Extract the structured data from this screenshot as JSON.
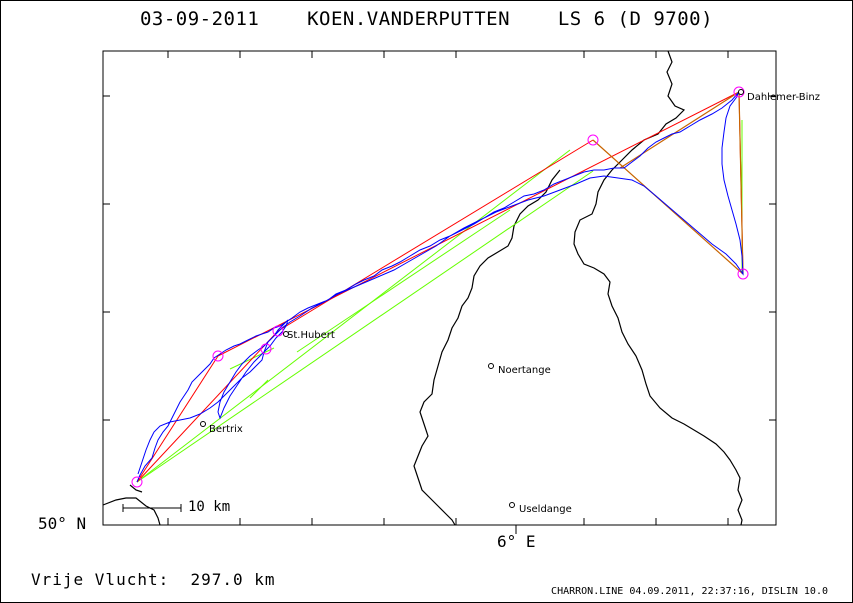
{
  "header": {
    "title": "03-09-2011    KOEN.VANDERPUTTEN    LS 6 (D 9700)"
  },
  "axes": {
    "lat_label": "50° N",
    "lon_label": "6° E"
  },
  "scale_bar": {
    "label": "10 km"
  },
  "places": [
    {
      "name": "Dahlemer-Binz"
    },
    {
      "name": "St.Hubert"
    },
    {
      "name": "Noertange"
    },
    {
      "name": "Bertrix"
    },
    {
      "name": "Useldange"
    }
  ],
  "flight": {
    "distance_text": "Vrije Vlucht:  297.0 km"
  },
  "footer": {
    "text": "CHARRON.LINE 04.09.2011, 22:37:16, DISLIN 10.0"
  },
  "colors": {
    "track": "#0000ff",
    "task_line": "#ff0000",
    "leg_line": "#c86400",
    "sector_line": "#66ff00",
    "turnpoint": "#ff00ff",
    "border": "#000000"
  }
}
